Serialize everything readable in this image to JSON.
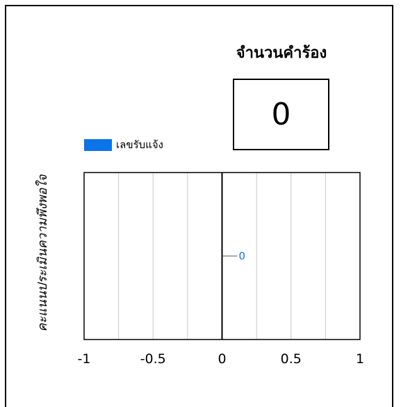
{
  "request_count": {
    "title": "จำนวนคำร้อง",
    "value": "0"
  },
  "legend": {
    "label": "เลขรับแจ้ง",
    "color": "#0a74e8"
  },
  "chart_data": {
    "type": "bar",
    "orientation": "horizontal",
    "ylabel": "คะแนนประเมินความพึงพอใจ",
    "xlabel": "",
    "xlim": [
      -1,
      1
    ],
    "x_ticks": [
      "-1",
      "-0.5",
      "0",
      "0.5",
      "1"
    ],
    "grid": true,
    "legend_position": "top-left",
    "series": [
      {
        "name": "เลขรับแจ้ง",
        "values": [
          0
        ],
        "data_labels": [
          "0"
        ],
        "color": "#0a74e8"
      }
    ]
  }
}
